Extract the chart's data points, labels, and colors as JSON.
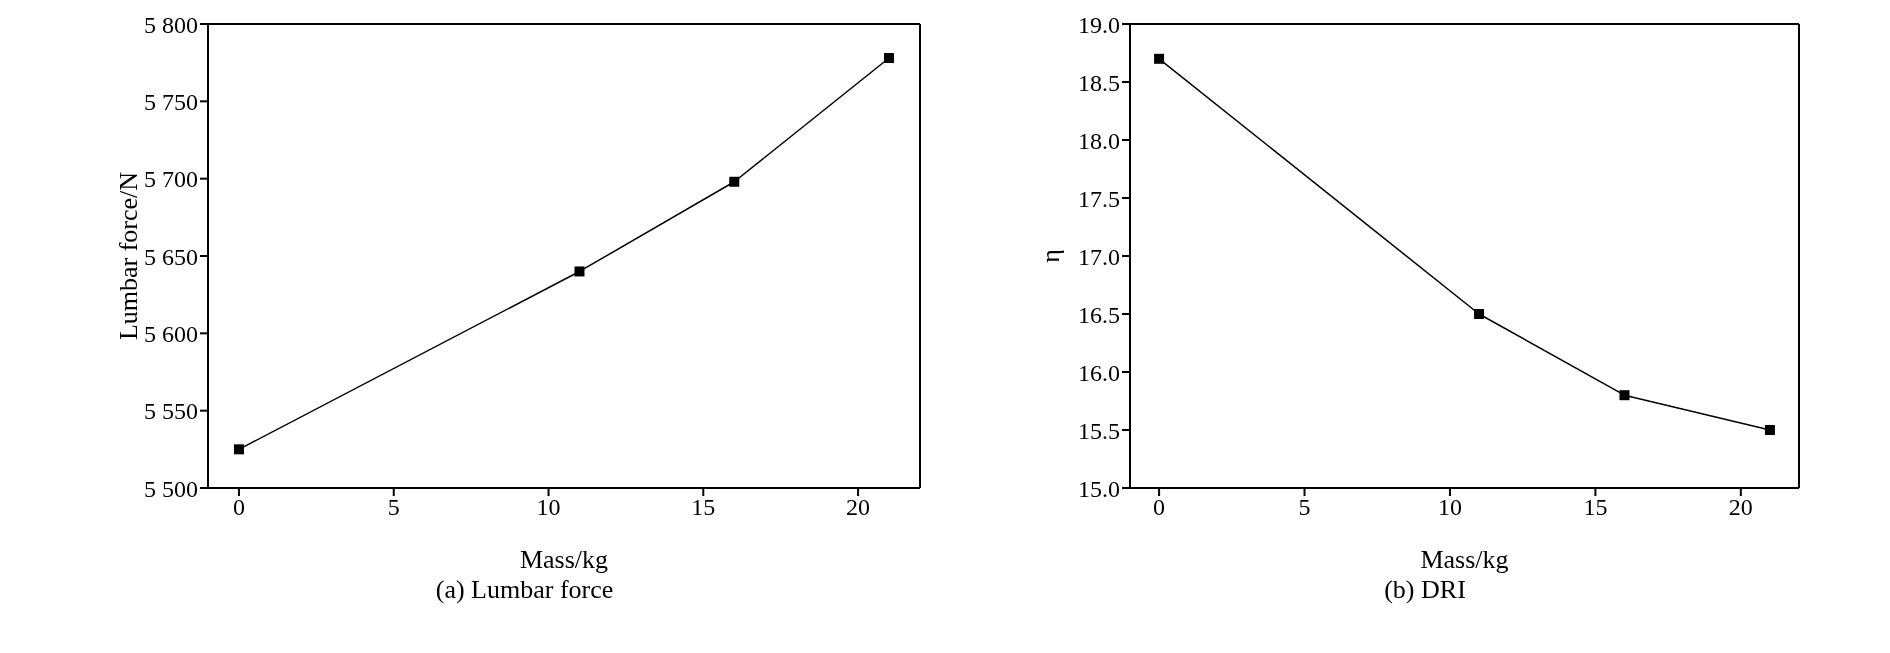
{
  "chart_data": [
    {
      "type": "line",
      "title": "(a) Lumbar force",
      "xlabel": "Mass/kg",
      "ylabel": "Lumbar force/N",
      "x": [
        0,
        11,
        16,
        21
      ],
      "series": [
        {
          "color": "#000000",
          "values": [
            5525,
            5640,
            5698,
            5778
          ]
        }
      ],
      "xlim": [
        -1,
        22
      ],
      "xticks": [
        0,
        5,
        10,
        15,
        20
      ],
      "ylim": [
        5500,
        5800
      ],
      "yticks": [
        {
          "value": 5500,
          "label": "5 500"
        },
        {
          "value": 5550,
          "label": "5 550"
        },
        {
          "value": 5600,
          "label": "5 600"
        },
        {
          "value": 5650,
          "label": "5 650"
        },
        {
          "value": 5700,
          "label": "5 700"
        },
        {
          "value": 5750,
          "label": "5 750"
        },
        {
          "value": 5800,
          "label": "5 800"
        }
      ],
      "marker": "square",
      "line_style": "solid",
      "grid": false,
      "legend": false
    },
    {
      "type": "line",
      "title": "(b) DRI",
      "xlabel": "Mass/kg",
      "ylabel": "η",
      "x": [
        0,
        11,
        16,
        21
      ],
      "series": [
        {
          "color": "#000000",
          "values": [
            18.7,
            16.5,
            15.8,
            15.5
          ]
        }
      ],
      "xlim": [
        -1,
        22
      ],
      "xticks": [
        0,
        5,
        10,
        15,
        20
      ],
      "ylim": [
        15,
        19
      ],
      "yticks": [
        {
          "value": 15,
          "label": "15.0"
        },
        {
          "value": 15.5,
          "label": "15.5"
        },
        {
          "value": 16,
          "label": "16.0"
        },
        {
          "value": 16.5,
          "label": "16.5"
        },
        {
          "value": 17,
          "label": "17.0"
        },
        {
          "value": 17.5,
          "label": "17.5"
        },
        {
          "value": 18,
          "label": "18.0"
        },
        {
          "value": 18.5,
          "label": "18.5"
        },
        {
          "value": 19,
          "label": "19.0"
        }
      ],
      "marker": "square",
      "line_style": "solid",
      "grid": false,
      "legend": false
    }
  ]
}
